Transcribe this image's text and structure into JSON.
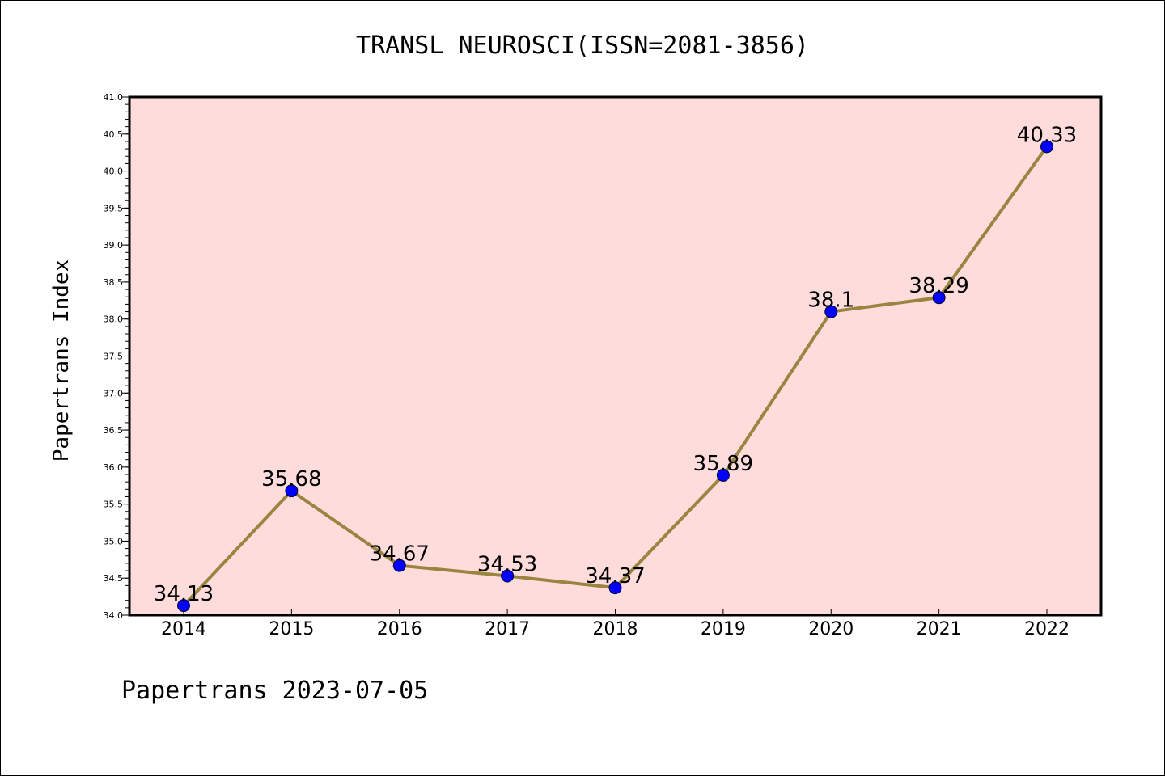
{
  "chart_data": {
    "type": "line",
    "title": "TRANSL NEUROSCI(ISSN=2081-3856)",
    "xlabel": "",
    "ylabel": "Papertrans Index",
    "x": [
      "2014",
      "2015",
      "2016",
      "2017",
      "2018",
      "2019",
      "2020",
      "2021",
      "2022"
    ],
    "values": [
      34.13,
      35.68,
      34.67,
      34.53,
      34.37,
      35.89,
      38.1,
      38.29,
      40.33
    ],
    "labels": [
      "34.13",
      "35.68",
      "34.67",
      "34.53",
      "34.37",
      "35.89",
      "38.1",
      "38.29",
      "40.33"
    ],
    "ylim": [
      34.0,
      41.0
    ],
    "yticks": [
      "34.0",
      "34.5",
      "35.0",
      "35.5",
      "36.0",
      "36.5",
      "37.0",
      "37.5",
      "38.0",
      "38.5",
      "39.0",
      "39.5",
      "40.0",
      "40.5",
      "41.0"
    ],
    "grid": false,
    "colors": {
      "background": "#ffdcdc",
      "line": "#9a8540",
      "marker": "#0000ff"
    }
  },
  "footer": {
    "text": "Papertrans 2023-07-05"
  }
}
